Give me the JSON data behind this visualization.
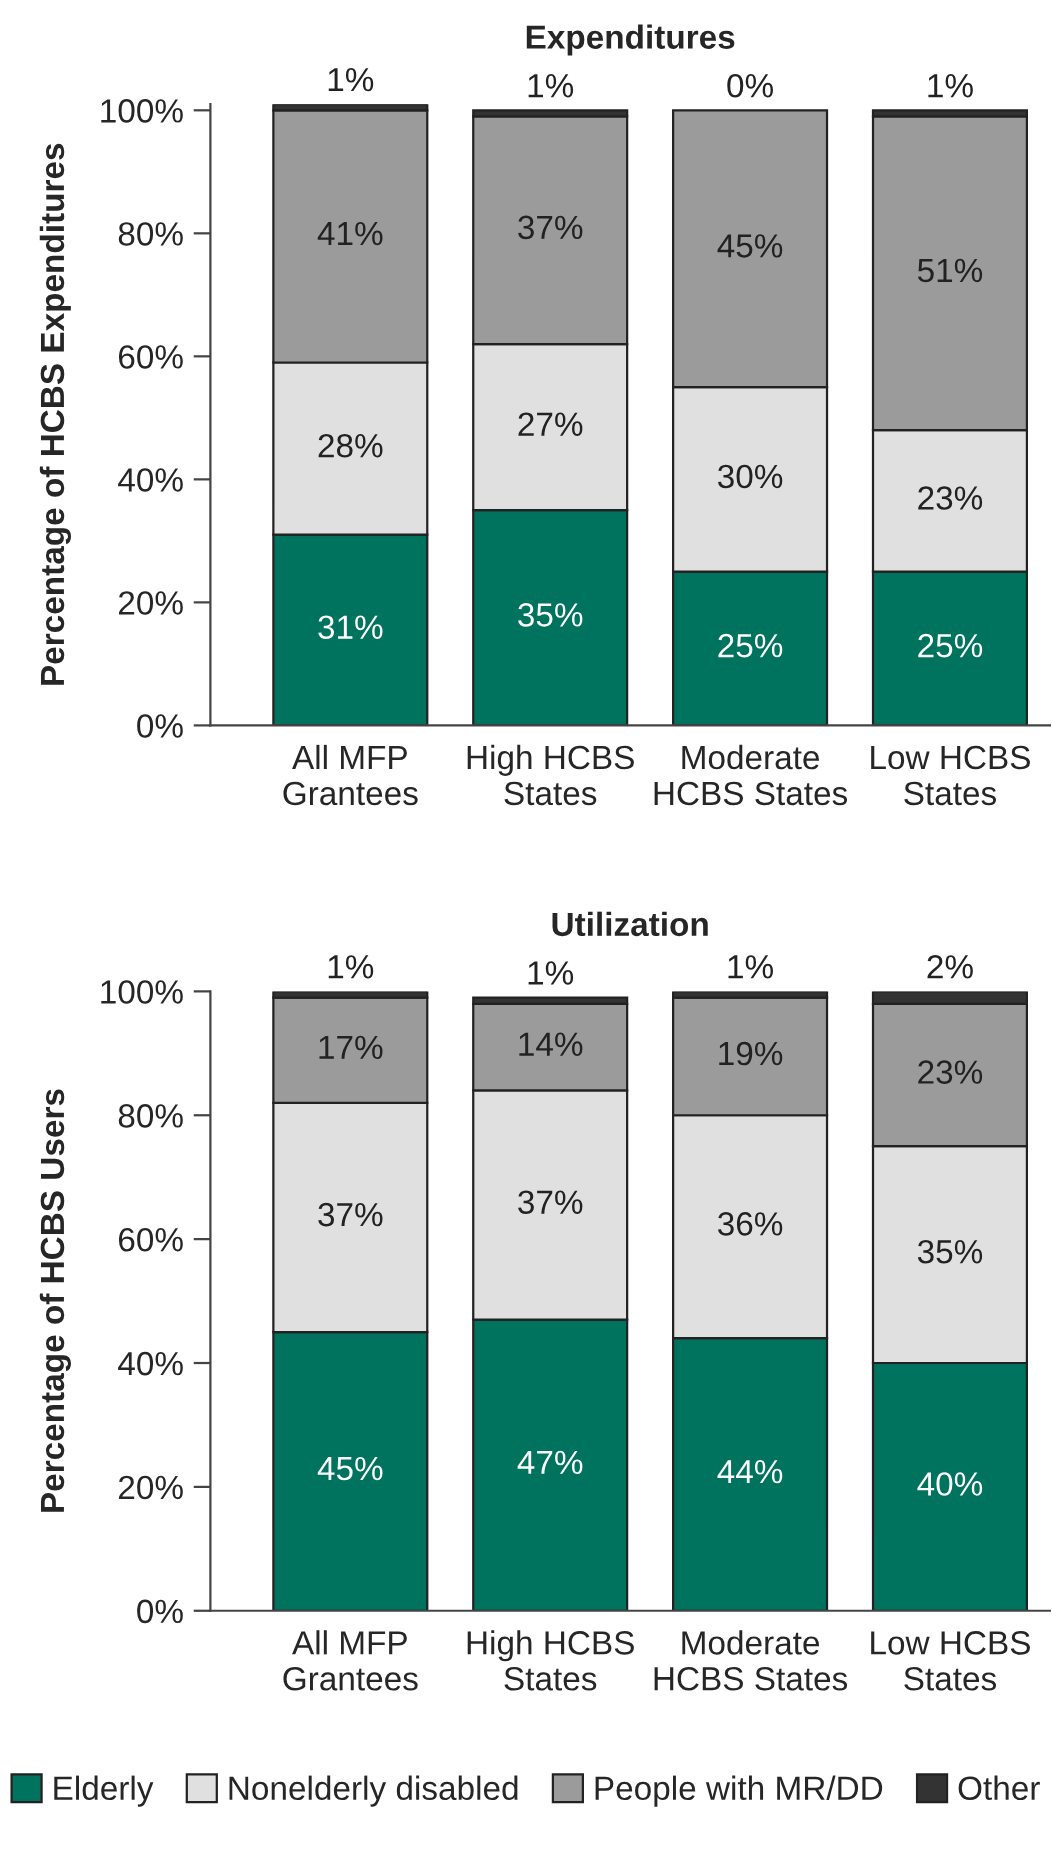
{
  "chart_data": [
    {
      "type": "bar",
      "title": "Expenditures",
      "ylabel": "Percentage of HCBS Expenditures",
      "categories": [
        "All MFP\nGrantees",
        "High HCBS\nStates",
        "Moderate\nHCBS States",
        "Low HCBS\nStates"
      ],
      "stacked": true,
      "legend": false,
      "grid": false,
      "ylim": [
        0,
        101
      ],
      "yticks": [
        {
          "value": 0,
          "label": "0%"
        },
        {
          "value": 20,
          "label": "20%"
        },
        {
          "value": 40,
          "label": "40%"
        },
        {
          "value": 60,
          "label": "60%"
        },
        {
          "value": 80,
          "label": "80%"
        },
        {
          "value": 100,
          "label": "100%"
        }
      ],
      "series": [
        {
          "color": "#00735f",
          "values": [
            31,
            35,
            25,
            25
          ],
          "value_labels": [
            "31%",
            "35%",
            "25%",
            "25%"
          ]
        },
        {
          "color": "#e0e0e0",
          "values": [
            28,
            27,
            30,
            23
          ],
          "value_labels": [
            "28%",
            "27%",
            "30%",
            "23%"
          ]
        },
        {
          "color": "#9b9b9b",
          "values": [
            41,
            37,
            45,
            51
          ],
          "value_labels": [
            "41%",
            "37%",
            "45%",
            "51%"
          ]
        },
        {
          "color": "#333333",
          "values": [
            1,
            1,
            0,
            1
          ],
          "value_labels": [
            "1%",
            "1%",
            "0%",
            "1%"
          ]
        }
      ]
    },
    {
      "type": "bar",
      "title": "Utilization",
      "ylabel": "Percentage of HCBS Users",
      "categories": [
        "All MFP\nGrantees",
        "High HCBS\nStates",
        "Moderate\nHCBS States",
        "Low HCBS\nStates"
      ],
      "stacked": true,
      "legend": "bottom",
      "grid": false,
      "ylim": [
        0,
        100
      ],
      "yticks": [
        {
          "value": 0,
          "label": "0%"
        },
        {
          "value": 20,
          "label": "20%"
        },
        {
          "value": 40,
          "label": "40%"
        },
        {
          "value": 60,
          "label": "60%"
        },
        {
          "value": 80,
          "label": "80%"
        },
        {
          "value": 100,
          "label": "100%"
        }
      ],
      "series": [
        {
          "name": "Elderly",
          "color": "#00735f",
          "values": [
            45,
            47,
            44,
            40
          ],
          "value_labels": [
            "45%",
            "47%",
            "44%",
            "40%"
          ]
        },
        {
          "name": "Nonelderly disabled",
          "color": "#e0e0e0",
          "values": [
            37,
            37,
            36,
            35
          ],
          "value_labels": [
            "37%",
            "37%",
            "36%",
            "35%"
          ]
        },
        {
          "name": "People with MR/DD",
          "color": "#9b9b9b",
          "values": [
            17,
            14,
            19,
            23
          ],
          "value_labels": [
            "17%",
            "14%",
            "19%",
            "23%"
          ]
        },
        {
          "name": "Other",
          "color": "#333333",
          "values": [
            1,
            1,
            1,
            2
          ],
          "value_labels": [
            "1%",
            "1%",
            "1%",
            "2%"
          ]
        }
      ]
    }
  ]
}
